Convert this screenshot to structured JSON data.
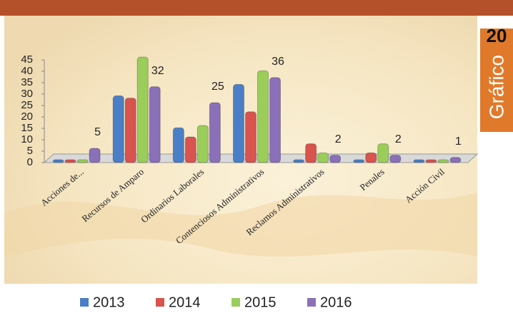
{
  "chart_data": {
    "type": "bar",
    "categories": [
      "Acciones de...",
      "Recursos de Amparo",
      "Ordinarios Laborales",
      "Contenciosos Administrativos",
      "Reclamos Administrativos",
      "Penales",
      "Acción Civil"
    ],
    "series": [
      {
        "name": "2013",
        "color": "#4a7fc7",
        "values": [
          0,
          28,
          14,
          33,
          0,
          0,
          0
        ]
      },
      {
        "name": "2014",
        "color": "#d9534f",
        "values": [
          0,
          27,
          10,
          21,
          7,
          3,
          0
        ]
      },
      {
        "name": "2015",
        "color": "#9acd5a",
        "values": [
          0,
          45,
          15,
          39,
          3,
          7,
          0
        ]
      },
      {
        "name": "2016",
        "color": "#8a70b8",
        "values": [
          5,
          32,
          25,
          36,
          2,
          2,
          1
        ]
      }
    ],
    "data_labels_series": 3,
    "ylim": [
      0,
      45
    ],
    "yticks": [
      0,
      5,
      10,
      15,
      20,
      25,
      30,
      35,
      40,
      45
    ]
  },
  "side_tab": {
    "number": "20",
    "label": "Gráfico"
  }
}
